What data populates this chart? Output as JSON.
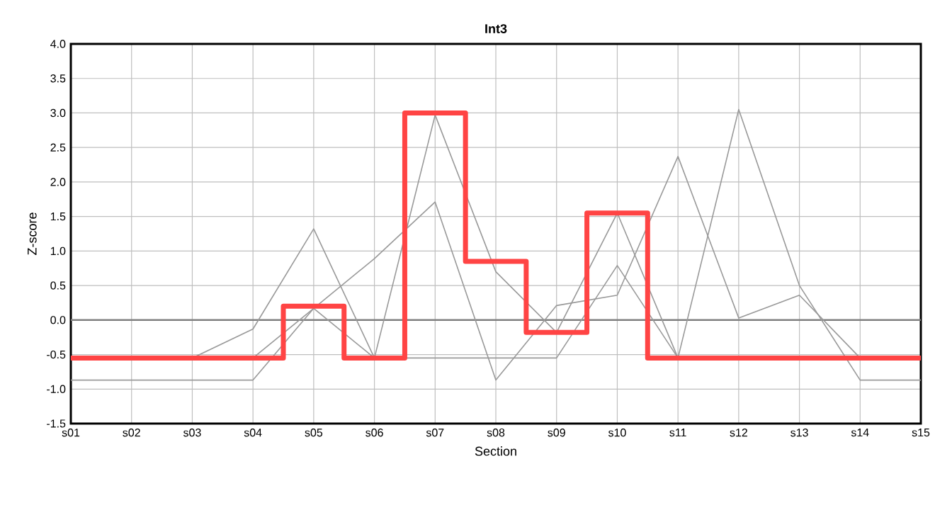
{
  "chart_data": {
    "type": "line",
    "title": "Int3",
    "xlabel": "Section",
    "ylabel": "Z-score",
    "categories": [
      "s01",
      "s02",
      "s03",
      "s04",
      "s05",
      "s06",
      "s07",
      "s08",
      "s09",
      "s10",
      "s11",
      "s12",
      "s13",
      "s14",
      "s15"
    ],
    "series": [
      {
        "color": "#999999",
        "values": [
          -0.55,
          -0.55,
          -0.55,
          -0.13,
          1.32,
          -0.55,
          2.97,
          0.7,
          -0.18,
          1.55,
          -0.55,
          null,
          null,
          null,
          null
        ]
      },
      {
        "color": "#999999",
        "values": [
          -0.55,
          -0.55,
          -0.55,
          -0.55,
          0.17,
          -0.55,
          -0.55,
          -0.55,
          -0.55,
          0.79,
          -0.55,
          3.05,
          0.5,
          -0.87,
          -0.87
        ]
      },
      {
        "color": "#999999",
        "values": [
          -0.87,
          -0.87,
          -0.87,
          -0.87,
          0.17,
          0.89,
          1.71,
          -0.87,
          0.21,
          0.36,
          2.37,
          0.03,
          0.36,
          -0.55,
          -0.55
        ]
      },
      {
        "type": "step",
        "color": "#ff4444",
        "values": [
          -0.55,
          -0.55,
          -0.55,
          -0.55,
          0.2,
          -0.55,
          3.0,
          0.85,
          -0.18,
          1.55,
          -0.55,
          -0.55,
          -0.55,
          -0.55,
          -0.55
        ]
      }
    ],
    "ylim": [
      -1.5,
      4.0
    ],
    "yticks": [
      {
        "value": -1.5,
        "label": "-1.5"
      },
      {
        "value": -1.0,
        "label": "-1.0"
      },
      {
        "value": -0.5,
        "label": "-0.5"
      },
      {
        "value": 0,
        "label": "0.0"
      },
      {
        "value": 0.5,
        "label": "0.5"
      },
      {
        "value": 1.0,
        "label": "1.0"
      },
      {
        "value": 1.5,
        "label": "1.5"
      },
      {
        "value": 2.0,
        "label": "2.0"
      },
      {
        "value": 2.5,
        "label": "2.5"
      },
      {
        "value": 3.0,
        "label": "3.0"
      },
      {
        "value": 3.5,
        "label": "3.5"
      },
      {
        "value": 4.0,
        "label": "4.0"
      }
    ],
    "ref_lines": [
      {
        "axis": "y",
        "value": 0,
        "color": "#808080"
      }
    ],
    "grid": true,
    "marker": "none",
    "line_style": "solid"
  }
}
